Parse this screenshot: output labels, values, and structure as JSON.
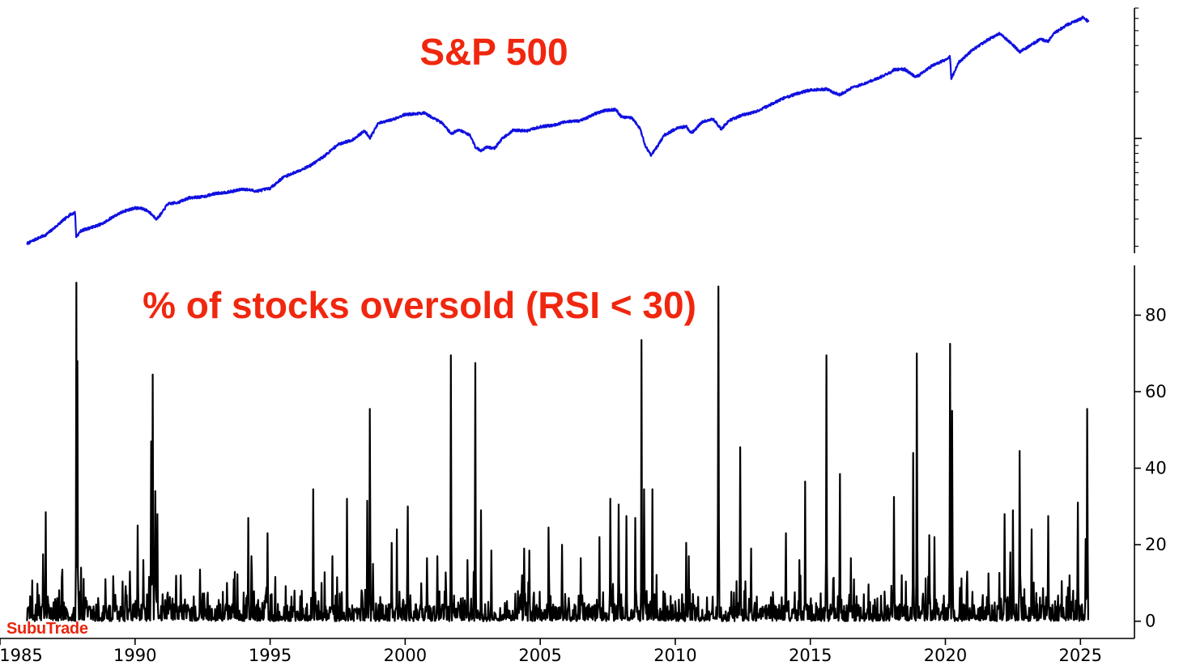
{
  "brand_label": "SubuTrade",
  "colors": {
    "title": "#f0270f",
    "sp500_line": "#1010e0",
    "oversold_line": "#000000",
    "axis": "#000000"
  },
  "chart_data": [
    {
      "type": "line",
      "title": "S&P 500",
      "yscale": "log",
      "y_axis_position": "right",
      "y_tick_labels": [],
      "grid": false,
      "xlim": [
        1985,
        2027
      ],
      "ylim": [
        180,
        7000
      ],
      "series": [
        {
          "color": "#1010e0",
          "x": [
            1986.0,
            1986.4,
            1986.7,
            1987.0,
            1987.3,
            1987.6,
            1987.78,
            1987.82,
            1988.0,
            1988.4,
            1988.8,
            1989.2,
            1989.6,
            1990.0,
            1990.3,
            1990.5,
            1990.8,
            1991.0,
            1991.2,
            1991.6,
            1992.0,
            1992.5,
            1993.0,
            1993.5,
            1994.0,
            1994.5,
            1995.0,
            1995.5,
            1996.0,
            1996.5,
            1997.0,
            1997.5,
            1997.8,
            1998.0,
            1998.5,
            1998.7,
            1999.0,
            1999.5,
            2000.0,
            2000.3,
            2000.7,
            2001.0,
            2001.4,
            2001.7,
            2002.0,
            2002.4,
            2002.6,
            2002.8,
            2003.0,
            2003.3,
            2003.6,
            2004.0,
            2004.5,
            2005.0,
            2005.5,
            2006.0,
            2006.5,
            2007.0,
            2007.4,
            2007.8,
            2008.0,
            2008.4,
            2008.7,
            2008.9,
            2009.1,
            2009.3,
            2009.6,
            2010.0,
            2010.4,
            2010.6,
            2011.0,
            2011.4,
            2011.7,
            2012.0,
            2012.5,
            2013.0,
            2013.5,
            2014.0,
            2014.5,
            2015.0,
            2015.6,
            2015.9,
            2016.1,
            2016.5,
            2017.0,
            2017.5,
            2018.0,
            2018.1,
            2018.5,
            2018.9,
            2019.0,
            2019.5,
            2020.0,
            2020.17,
            2020.22,
            2020.5,
            2021.0,
            2021.5,
            2022.0,
            2022.4,
            2022.75,
            2023.0,
            2023.5,
            2023.8,
            2024.0,
            2024.5,
            2025.0,
            2025.1,
            2025.3
          ],
          "y": [
            208,
            225,
            237,
            262,
            291,
            321,
            330,
            230,
            252,
            265,
            280,
            312,
            338,
            354,
            350,
            336,
            300,
            330,
            375,
            385,
            412,
            418,
            440,
            450,
            470,
            455,
            475,
            562,
            610,
            668,
            766,
            910,
            950,
            965,
            1120,
            1010,
            1250,
            1320,
            1430,
            1440,
            1460,
            1370,
            1250,
            1070,
            1140,
            1050,
            880,
            830,
            880,
            860,
            1000,
            1130,
            1120,
            1190,
            1220,
            1290,
            1300,
            1440,
            1520,
            1540,
            1380,
            1360,
            1150,
            890,
            780,
            870,
            1050,
            1150,
            1200,
            1080,
            1280,
            1340,
            1150,
            1310,
            1420,
            1490,
            1650,
            1820,
            1950,
            2060,
            2090,
            1970,
            1920,
            2110,
            2270,
            2450,
            2700,
            2800,
            2800,
            2500,
            2550,
            2950,
            3230,
            3380,
            2450,
            3120,
            3740,
            4280,
            4790,
            4200,
            3650,
            3850,
            4400,
            4250,
            4770,
            5450,
            5950,
            6100,
            5700
          ]
        }
      ]
    },
    {
      "type": "line",
      "title": "% of stocks oversold (RSI < 30)",
      "y_axis_position": "right",
      "grid": false,
      "xlim": [
        1985,
        2027
      ],
      "ylim": [
        -4.5,
        93
      ],
      "xticks": [
        1985,
        1990,
        1995,
        2000,
        2005,
        2010,
        2015,
        2020,
        2025
      ],
      "xtick_labels": [
        "1985",
        "1990",
        "1995",
        "2000",
        "2005",
        "2010",
        "2015",
        "2020",
        "2025"
      ],
      "yticks": [
        0,
        20,
        40,
        60,
        80
      ],
      "ytick_labels": [
        "0",
        "20",
        "40",
        "60",
        "80"
      ],
      "series": [
        {
          "color": "#000000",
          "spikes": [
            {
              "x": 1986.7,
              "y": 28.5
            },
            {
              "x": 1986.6,
              "y": 17.5
            },
            {
              "x": 1987.3,
              "y": 13.5
            },
            {
              "x": 1987.82,
              "y": 88.5
            },
            {
              "x": 1987.87,
              "y": 68.0
            },
            {
              "x": 1988.0,
              "y": 14.0
            },
            {
              "x": 1988.9,
              "y": 11.0
            },
            {
              "x": 1989.8,
              "y": 13.0
            },
            {
              "x": 1990.1,
              "y": 25.0
            },
            {
              "x": 1990.3,
              "y": 16.0
            },
            {
              "x": 1990.6,
              "y": 47.0
            },
            {
              "x": 1990.65,
              "y": 64.5
            },
            {
              "x": 1990.75,
              "y": 34.0
            },
            {
              "x": 1990.82,
              "y": 28.0
            },
            {
              "x": 1991.7,
              "y": 12.0
            },
            {
              "x": 1992.4,
              "y": 13.5
            },
            {
              "x": 1993.4,
              "y": 10.0
            },
            {
              "x": 1994.2,
              "y": 27.0
            },
            {
              "x": 1994.3,
              "y": 17.0
            },
            {
              "x": 1994.9,
              "y": 23.0
            },
            {
              "x": 1995.9,
              "y": 8.0
            },
            {
              "x": 1996.6,
              "y": 34.5
            },
            {
              "x": 1997.3,
              "y": 17.0
            },
            {
              "x": 1997.85,
              "y": 32.0
            },
            {
              "x": 1998.6,
              "y": 31.5
            },
            {
              "x": 1998.7,
              "y": 55.5
            },
            {
              "x": 1998.8,
              "y": 15.0
            },
            {
              "x": 1999.5,
              "y": 20.5
            },
            {
              "x": 1999.7,
              "y": 24.0
            },
            {
              "x": 2000.1,
              "y": 30.0
            },
            {
              "x": 2000.8,
              "y": 16.5
            },
            {
              "x": 2001.2,
              "y": 17.0
            },
            {
              "x": 2001.7,
              "y": 69.5
            },
            {
              "x": 2002.3,
              "y": 16.0
            },
            {
              "x": 2002.6,
              "y": 67.5
            },
            {
              "x": 2002.8,
              "y": 29.0
            },
            {
              "x": 2003.2,
              "y": 18.5
            },
            {
              "x": 2004.4,
              "y": 19.0
            },
            {
              "x": 2004.6,
              "y": 18.5
            },
            {
              "x": 2005.3,
              "y": 24.5
            },
            {
              "x": 2005.8,
              "y": 20.0
            },
            {
              "x": 2006.5,
              "y": 16.5
            },
            {
              "x": 2007.2,
              "y": 22.0
            },
            {
              "x": 2007.6,
              "y": 32.0
            },
            {
              "x": 2007.9,
              "y": 30.5
            },
            {
              "x": 2008.2,
              "y": 27.5
            },
            {
              "x": 2008.52,
              "y": 27.0
            },
            {
              "x": 2008.75,
              "y": 73.5
            },
            {
              "x": 2008.85,
              "y": 34.5
            },
            {
              "x": 2009.15,
              "y": 34.5
            },
            {
              "x": 2010.4,
              "y": 20.5
            },
            {
              "x": 2010.5,
              "y": 17.0
            },
            {
              "x": 2011.6,
              "y": 87.5
            },
            {
              "x": 2012.4,
              "y": 45.5
            },
            {
              "x": 2012.8,
              "y": 19.0
            },
            {
              "x": 2014.1,
              "y": 23.0
            },
            {
              "x": 2014.6,
              "y": 16.0
            },
            {
              "x": 2014.8,
              "y": 36.5
            },
            {
              "x": 2015.6,
              "y": 69.5
            },
            {
              "x": 2016.1,
              "y": 38.5
            },
            {
              "x": 2016.5,
              "y": 16.5
            },
            {
              "x": 2018.1,
              "y": 32.5
            },
            {
              "x": 2018.8,
              "y": 44.0
            },
            {
              "x": 2018.95,
              "y": 70.0
            },
            {
              "x": 2019.4,
              "y": 22.5
            },
            {
              "x": 2019.6,
              "y": 22.0
            },
            {
              "x": 2020.18,
              "y": 72.5
            },
            {
              "x": 2020.25,
              "y": 55.0
            },
            {
              "x": 2020.8,
              "y": 13.0
            },
            {
              "x": 2021.6,
              "y": 12.5
            },
            {
              "x": 2022.2,
              "y": 28.0
            },
            {
              "x": 2022.4,
              "y": 18.0
            },
            {
              "x": 2022.5,
              "y": 29.0
            },
            {
              "x": 2022.75,
              "y": 44.5
            },
            {
              "x": 2023.2,
              "y": 24.0
            },
            {
              "x": 2023.8,
              "y": 27.5
            },
            {
              "x": 2024.3,
              "y": 10.5
            },
            {
              "x": 2024.6,
              "y": 12.0
            },
            {
              "x": 2024.9,
              "y": 31.0
            },
            {
              "x": 2025.2,
              "y": 21.5
            },
            {
              "x": 2025.25,
              "y": 55.5
            }
          ]
        }
      ]
    }
  ]
}
